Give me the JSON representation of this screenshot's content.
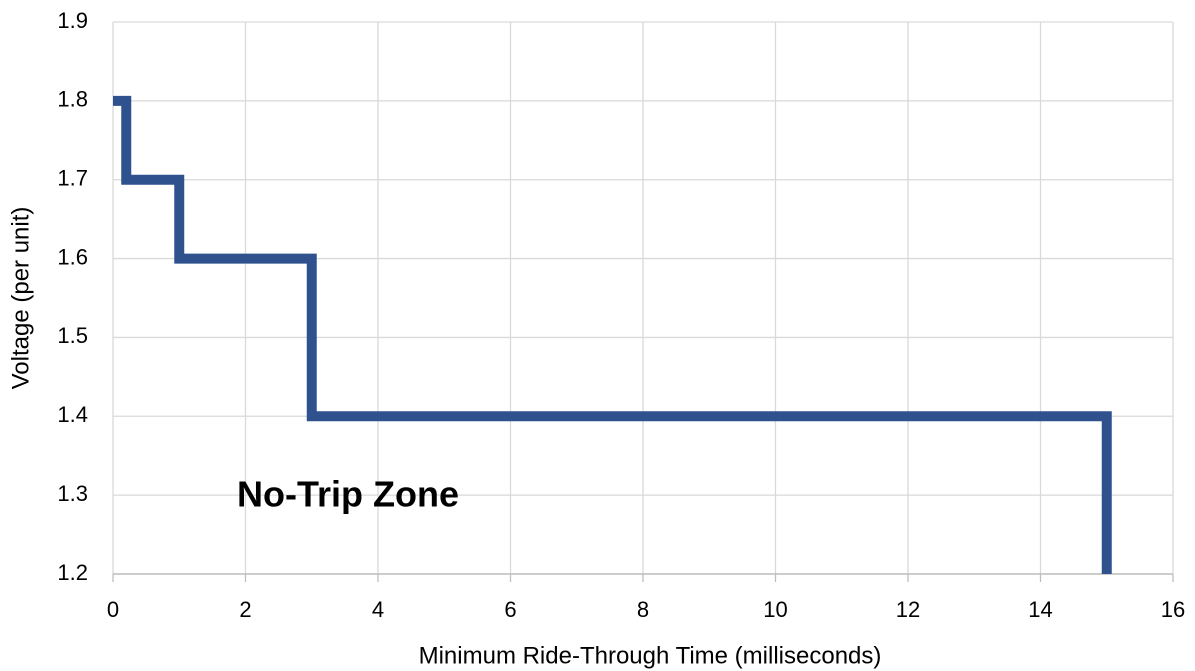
{
  "chart_data": {
    "type": "line",
    "x": [
      0,
      0.2,
      0.2,
      1,
      1,
      3,
      3,
      15,
      15
    ],
    "values": [
      1.8,
      1.8,
      1.7,
      1.7,
      1.6,
      1.6,
      1.4,
      1.4,
      1.2
    ],
    "color": "#2f528f",
    "xlim": [
      0,
      16
    ],
    "xticks": [
      0,
      2,
      4,
      6,
      8,
      10,
      12,
      14,
      16
    ],
    "ylim": [
      1.2,
      1.9
    ],
    "yticks": [
      1.2,
      1.3,
      1.4,
      1.5,
      1.6,
      1.7,
      1.8,
      1.9
    ],
    "grid": true,
    "x_label": "Minimum Ride-Through Time (milliseconds)",
    "y_label": "Voltage (per unit)",
    "annotation": "No-Trip Zone"
  }
}
